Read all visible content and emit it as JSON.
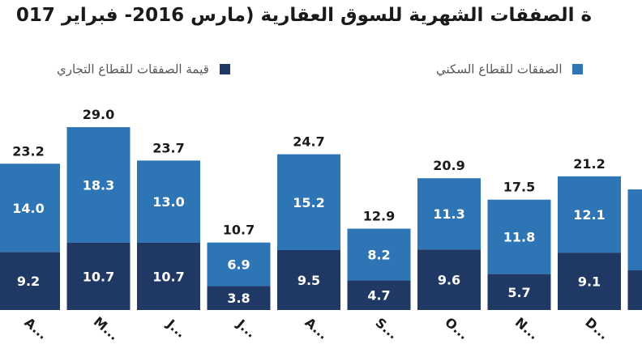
{
  "chart_data": {
    "type": "bar",
    "stacked": true,
    "title": "ة الصفقات الشهرية للسوق العقارية (مارس 2016- فبراير 017",
    "legend_placement": "top",
    "grid": false,
    "categories": [
      "A...",
      "M...",
      "J...",
      "J...",
      "A...",
      "S...",
      "O...",
      "N...",
      "D..."
    ],
    "series": [
      {
        "name": "قيمة الصفقات للقطاع التجاري",
        "color": "#1f3864",
        "values": [
          9.2,
          10.7,
          10.7,
          3.8,
          9.5,
          4.7,
          9.6,
          5.7,
          9.1
        ]
      },
      {
        "name": "الصفقات للقطاع السكني",
        "color": "#2e75b6",
        "values": [
          14.0,
          18.3,
          13.0,
          6.9,
          15.2,
          8.2,
          11.3,
          11.8,
          12.1
        ]
      }
    ],
    "totals": [
      23.2,
      29.0,
      23.7,
      10.7,
      24.7,
      12.9,
      20.9,
      17.5,
      21.2
    ],
    "ylim": [
      0,
      29.5
    ]
  }
}
